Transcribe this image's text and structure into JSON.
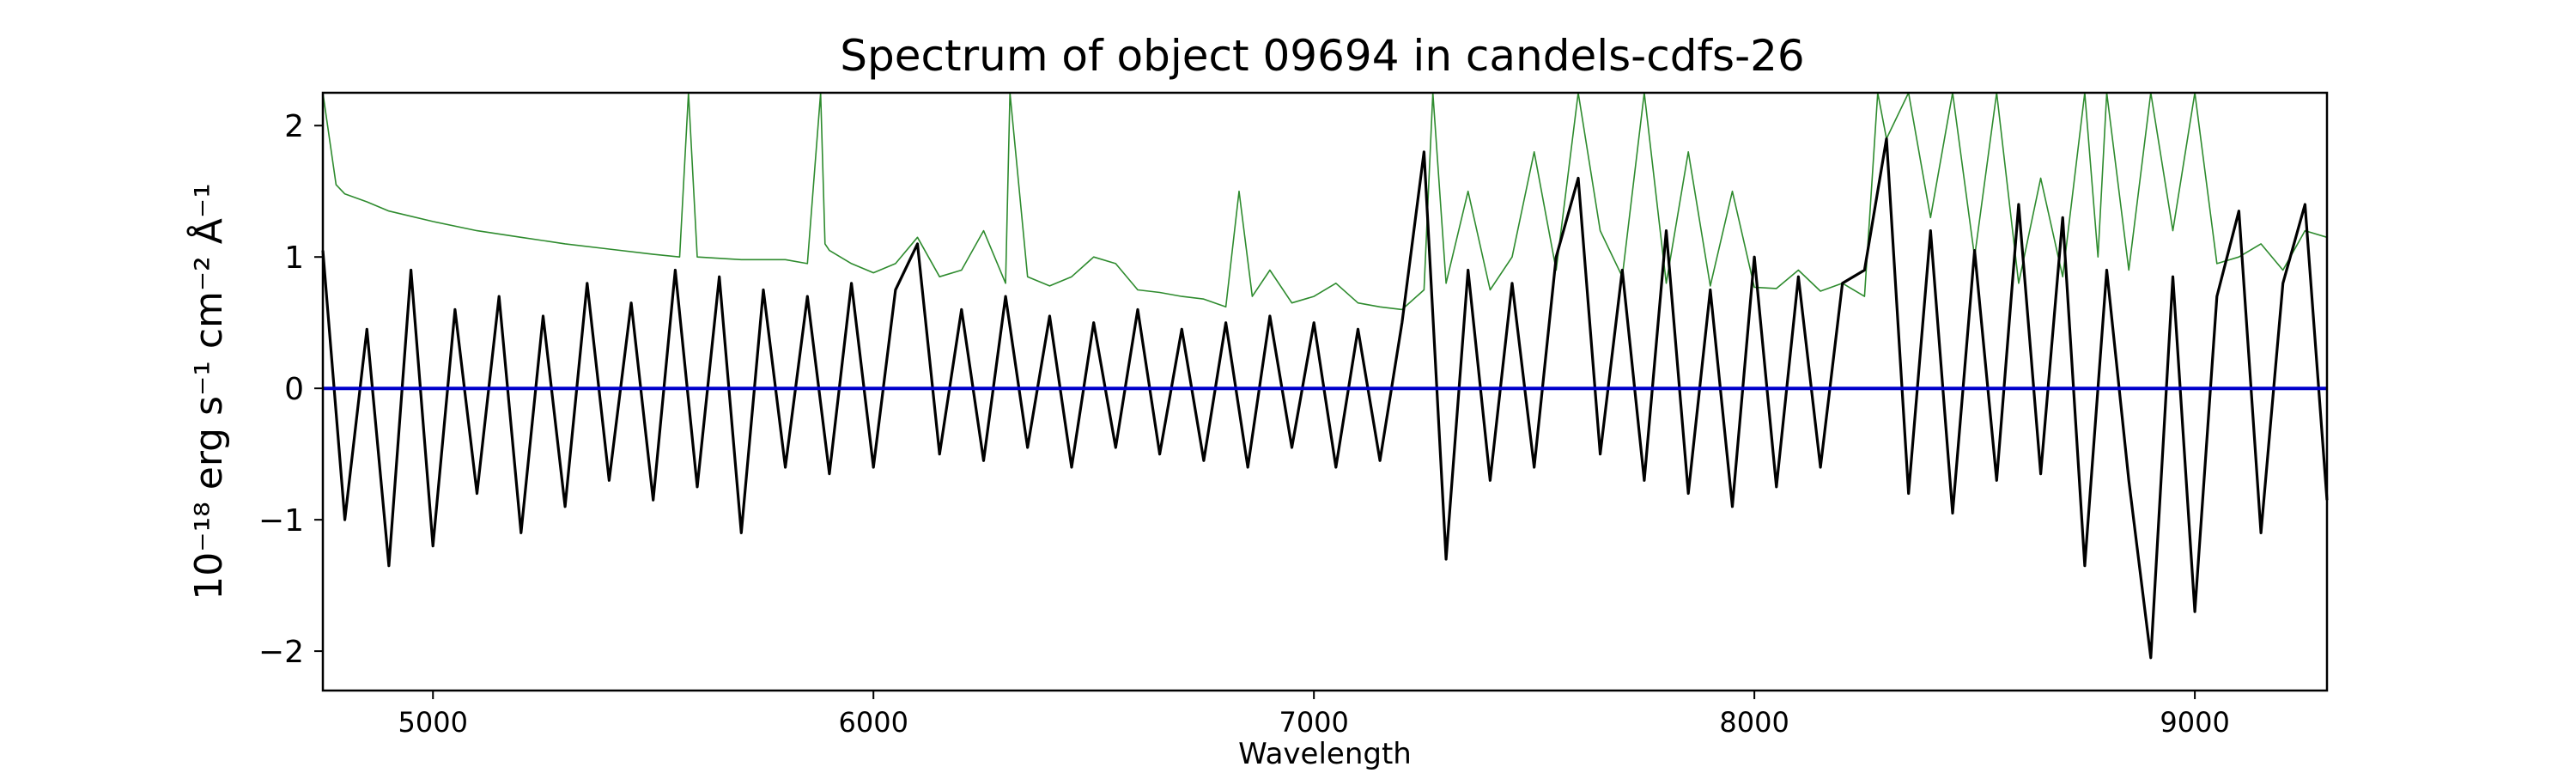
{
  "chart_data": {
    "type": "line",
    "title": "Spectrum of object 09694 in candels-cdfs-26",
    "xlabel": "Wavelength",
    "ylabel": "10⁻¹⁸ erg s⁻¹ cm⁻² Å⁻¹",
    "xlim": [
      4750,
      9300
    ],
    "ylim": [
      -2.3,
      2.25
    ],
    "xticks": [
      5000,
      6000,
      7000,
      8000,
      9000
    ],
    "yticks": [
      -2,
      -1,
      0,
      1,
      2
    ],
    "grid": false,
    "legend": "none",
    "series": [
      {
        "color": "#000000",
        "description": "flux",
        "x": [
          4750,
          4800,
          4850,
          4900,
          4950,
          5000,
          5050,
          5100,
          5150,
          5200,
          5250,
          5300,
          5350,
          5400,
          5450,
          5500,
          5550,
          5600,
          5650,
          5700,
          5750,
          5800,
          5850,
          5900,
          5950,
          6000,
          6050,
          6100,
          6150,
          6200,
          6250,
          6300,
          6350,
          6400,
          6450,
          6500,
          6550,
          6600,
          6650,
          6700,
          6750,
          6800,
          6850,
          6900,
          6950,
          7000,
          7050,
          7100,
          7150,
          7200,
          7250,
          7300,
          7350,
          7400,
          7450,
          7500,
          7550,
          7600,
          7650,
          7700,
          7750,
          7800,
          7850,
          7900,
          7950,
          8000,
          8050,
          8100,
          8150,
          8200,
          8250,
          8300,
          8350,
          8400,
          8450,
          8500,
          8550,
          8600,
          8650,
          8700,
          8750,
          8800,
          8850,
          8900,
          8950,
          9000,
          9050,
          9100,
          9150,
          9200,
          9250,
          9300
        ],
        "y": [
          1.05,
          -1.0,
          0.45,
          -1.35,
          0.9,
          -1.2,
          0.6,
          -0.8,
          0.7,
          -1.1,
          0.55,
          -0.9,
          0.8,
          -0.7,
          0.65,
          -0.85,
          0.9,
          -0.75,
          0.85,
          -1.1,
          0.75,
          -0.6,
          0.7,
          -0.65,
          0.8,
          -0.6,
          0.75,
          1.1,
          -0.5,
          0.6,
          -0.55,
          0.7,
          -0.45,
          0.55,
          -0.6,
          0.5,
          -0.45,
          0.6,
          -0.5,
          0.45,
          -0.55,
          0.5,
          -0.6,
          0.55,
          -0.45,
          0.5,
          -0.6,
          0.45,
          -0.55,
          0.5,
          1.8,
          -1.3,
          0.9,
          -0.7,
          0.8,
          -0.6,
          1.0,
          1.6,
          -0.5,
          0.9,
          -0.7,
          1.2,
          -0.8,
          0.75,
          -0.9,
          1.0,
          -0.75,
          0.85,
          -0.6,
          0.8,
          0.9,
          1.9,
          -0.8,
          1.2,
          -0.95,
          1.05,
          -0.7,
          1.4,
          -0.65,
          1.3,
          -1.35,
          0.9,
          -0.7,
          -2.05,
          0.85,
          -1.7,
          0.7,
          1.35,
          -1.1,
          0.8,
          1.4,
          -0.85
        ]
      },
      {
        "color": "#2e8b2e",
        "description": "error",
        "x": [
          4750,
          4780,
          4800,
          4850,
          4900,
          5000,
          5100,
          5200,
          5300,
          5400,
          5500,
          5560,
          5580,
          5600,
          5700,
          5800,
          5850,
          5880,
          5890,
          5900,
          5950,
          6000,
          6050,
          6100,
          6150,
          6200,
          6250,
          6300,
          6310,
          6350,
          6400,
          6450,
          6500,
          6550,
          6600,
          6650,
          6700,
          6750,
          6800,
          6830,
          6860,
          6900,
          6950,
          7000,
          7050,
          7100,
          7150,
          7200,
          7250,
          7270,
          7300,
          7350,
          7400,
          7450,
          7500,
          7550,
          7600,
          7650,
          7700,
          7750,
          7800,
          7850,
          7900,
          7950,
          8000,
          8050,
          8100,
          8150,
          8200,
          8250,
          8280,
          8300,
          8350,
          8400,
          8450,
          8500,
          8550,
          8600,
          8650,
          8700,
          8750,
          8780,
          8800,
          8850,
          8900,
          8950,
          9000,
          9050,
          9100,
          9150,
          9200,
          9250,
          9300
        ],
        "y": [
          2.25,
          1.55,
          1.48,
          1.42,
          1.35,
          1.27,
          1.2,
          1.15,
          1.1,
          1.06,
          1.02,
          1.0,
          2.25,
          1.0,
          0.98,
          0.98,
          0.95,
          2.25,
          1.1,
          1.05,
          0.95,
          0.88,
          0.95,
          1.15,
          0.85,
          0.9,
          1.2,
          0.8,
          2.25,
          0.85,
          0.78,
          0.85,
          1.0,
          0.95,
          0.75,
          0.73,
          0.7,
          0.68,
          0.62,
          1.5,
          0.7,
          0.9,
          0.65,
          0.7,
          0.8,
          0.65,
          0.62,
          0.6,
          0.75,
          2.25,
          0.8,
          1.5,
          0.75,
          1.0,
          1.8,
          0.9,
          2.25,
          1.2,
          0.85,
          2.25,
          0.8,
          1.8,
          0.78,
          1.5,
          0.77,
          0.76,
          0.9,
          0.74,
          0.8,
          0.7,
          2.25,
          1.9,
          2.25,
          1.3,
          2.25,
          1.0,
          2.25,
          0.8,
          1.6,
          0.85,
          2.25,
          1.0,
          2.25,
          0.9,
          2.25,
          1.2,
          2.25,
          0.95,
          1.0,
          1.1,
          0.9,
          1.2,
          1.15
        ]
      },
      {
        "color": "#0000cc",
        "description": "zero",
        "x": [
          4750,
          9300
        ],
        "y": [
          0,
          0
        ]
      }
    ]
  }
}
